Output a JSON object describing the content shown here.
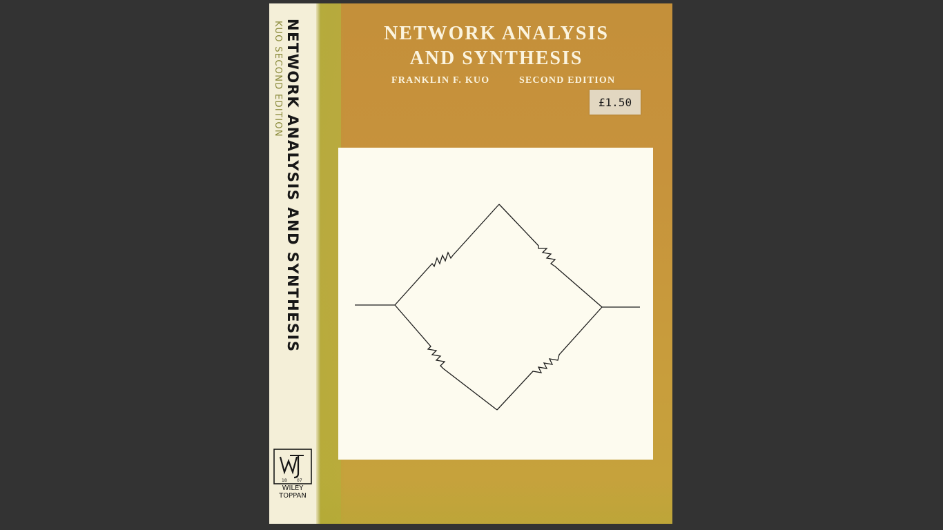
{
  "viewer": {
    "background": "#333333"
  },
  "book": {
    "cover_color": "#c89a3a",
    "spine": {
      "title": "NETWORK ANALYSIS AND SYNTHESIS",
      "subtitle": "KUO   SECOND EDITION",
      "publisher_logo": {
        "icon": "wiley-logo-icon",
        "year_left": "18",
        "year_right": "07"
      },
      "publisher": [
        "WILEY",
        "TOPPAN"
      ]
    },
    "front": {
      "title_line_1": "NETWORK ANALYSIS",
      "title_line_2": "AND SYNTHESIS",
      "author": "FRANKLIN F. KUO",
      "edition": "SECOND EDITION",
      "price": "£1.50",
      "illustration": "resistor-bridge-diagram-icon"
    }
  }
}
